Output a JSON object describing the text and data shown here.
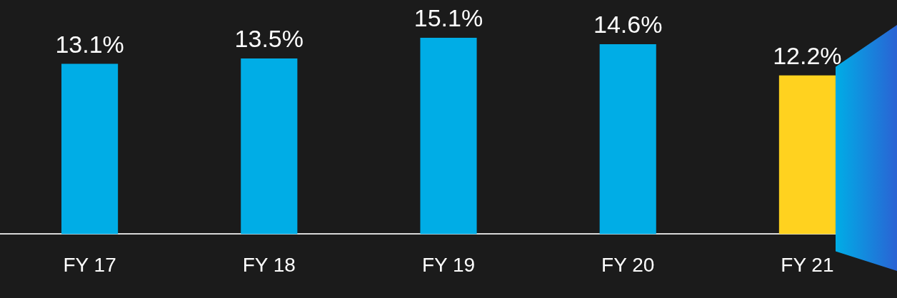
{
  "chart_data": {
    "type": "bar",
    "categories": [
      "FY 17",
      "FY 18",
      "FY 19",
      "FY 20",
      "FY 21"
    ],
    "values": [
      13.1,
      13.5,
      15.1,
      14.6,
      12.2
    ],
    "colors": [
      "#00ade6",
      "#00ade6",
      "#00ade6",
      "#00ade6",
      "#ffd21f"
    ],
    "value_labels": [
      "13.1%",
      "13.5%",
      "15.1%",
      "14.6%",
      "12.2%"
    ],
    "legend": false
  }
}
